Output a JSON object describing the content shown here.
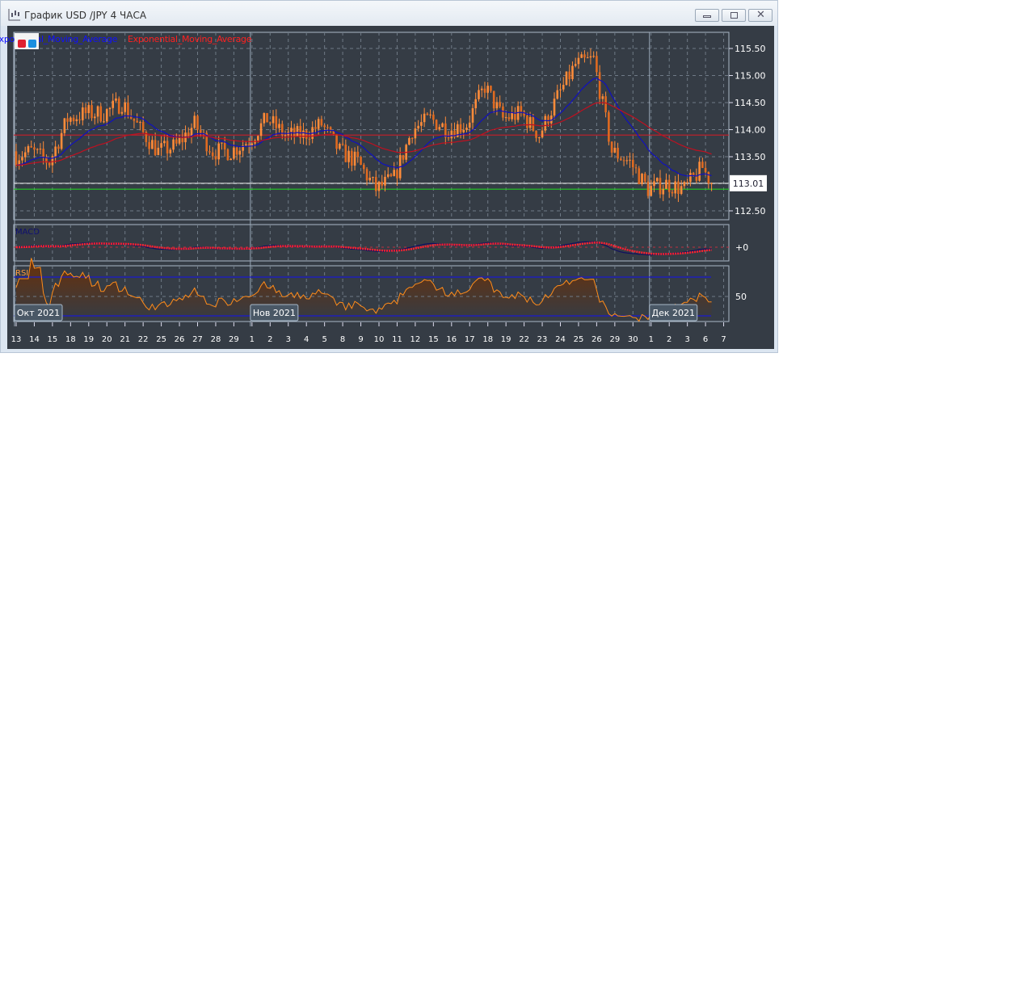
{
  "window": {
    "title": "График USD /JPY  4 ЧАСА",
    "buttons": [
      "minimize",
      "restore",
      "close"
    ]
  },
  "legend": [
    {
      "label": "Exponential_Moving_Average",
      "color": "#1010ff"
    },
    {
      "label": "Exponential_Moving_Average",
      "color": "#ff2020"
    }
  ],
  "panels": {
    "macd_label": "MACD",
    "rsi_label": "RSI",
    "macd_zero_label": "+0",
    "rsi_mid_label": "50"
  },
  "colors": {
    "background": "#353c45",
    "candle": "#ff8c3a",
    "ema_fast": "#1010c0",
    "ema_slow": "#c01020",
    "resistance": "#c81e28",
    "support": "#22cc22",
    "macd_signal": "#ff2030",
    "rsi_line": "#ff8c1a",
    "rsi_levels": "#1a1ad0"
  },
  "chart_data": {
    "type": "candlestick",
    "instrument": "USD/JPY",
    "timeframe": "4 ЧАСА",
    "y_ticks": [
      "115.50",
      "115.00",
      "114.50",
      "114.00",
      "113.50",
      "112.50"
    ],
    "ylim": [
      112.35,
      115.65
    ],
    "current_price_label": "113.01",
    "horizontal_lines": {
      "resistance": 113.9,
      "support": 112.9,
      "current": 113.01
    },
    "x_tick_labels": [
      "13",
      "14",
      "15",
      "18",
      "19",
      "20",
      "21",
      "22",
      "25",
      "26",
      "27",
      "28",
      "29",
      "1",
      "2",
      "3",
      "4",
      "5",
      "8",
      "9",
      "10",
      "11",
      "12",
      "15",
      "16",
      "17",
      "18",
      "19",
      "22",
      "23",
      "24",
      "25",
      "26",
      "29",
      "30",
      "1",
      "2",
      "3",
      "6",
      "7"
    ],
    "month_labels": [
      {
        "label": "Окт 2021",
        "at": "13"
      },
      {
        "label": "Нов 2021",
        "at": "1"
      },
      {
        "label": "Дек 2021",
        "at": "1"
      }
    ],
    "daily_close": [
      113.6,
      113.4,
      114.2,
      114.3,
      114.3,
      114.5,
      114.0,
      113.6,
      113.7,
      114.1,
      113.6,
      113.6,
      113.8,
      114.2,
      113.9,
      113.9,
      114.1,
      113.6,
      113.4,
      112.9,
      113.1,
      114.0,
      114.2,
      114.0,
      114.1,
      114.8,
      114.2,
      114.3,
      113.9,
      114.6,
      115.2,
      115.3,
      113.6,
      113.4,
      112.9,
      113.0,
      112.9,
      113.3,
      113.01
    ],
    "rsi_levels": [
      70,
      50,
      30
    ],
    "grid": true
  }
}
